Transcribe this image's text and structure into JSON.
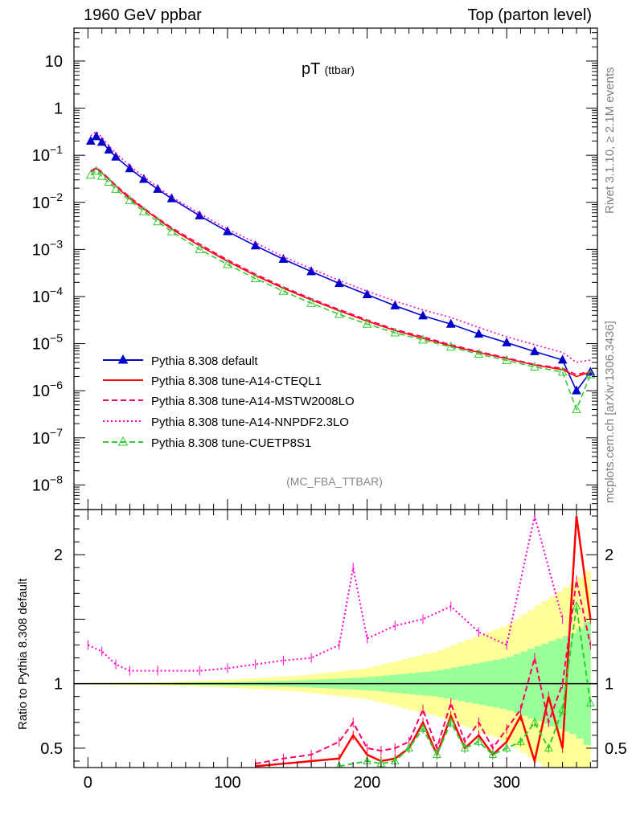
{
  "header": {
    "left": "1960 GeV ppbar",
    "right": "Top (parton level)"
  },
  "side_text": {
    "rivet": "Rivet 3.1.10, ≥ 2.1M events",
    "mcplots": "mcplots.cern.ch [arXiv:1306.3436]"
  },
  "chart_data": {
    "type": "line",
    "title_main": "pT",
    "title_sub": "(ttbar)",
    "analysis": "(MC_FBA_TTBAR)",
    "xlabel": "",
    "ratio_ylabel": "Ratio to Pythia 8.308 default",
    "xlim": [
      -10,
      365
    ],
    "x_ticks": [
      "0",
      "100",
      "200",
      "300"
    ],
    "main": {
      "yscale": "log",
      "ylim": [
        3e-09,
        50
      ],
      "y_tick_labels": [
        {
          "v": 10,
          "mant": "10",
          "exp": ""
        },
        {
          "v": 1,
          "mant": "1",
          "exp": ""
        },
        {
          "v": 0.1,
          "mant": "10",
          "exp": "−1"
        },
        {
          "v": 0.01,
          "mant": "10",
          "exp": "−2"
        },
        {
          "v": 0.001,
          "mant": "10",
          "exp": "−3"
        },
        {
          "v": 0.0001,
          "mant": "10",
          "exp": "−4"
        },
        {
          "v": 1e-05,
          "mant": "10",
          "exp": "−5"
        },
        {
          "v": 1e-06,
          "mant": "10",
          "exp": "−6"
        },
        {
          "v": 1e-07,
          "mant": "10",
          "exp": "−7"
        },
        {
          "v": 1e-08,
          "mant": "10",
          "exp": "−8"
        }
      ],
      "series": [
        {
          "name": "Pythia 8.308 default",
          "color": "#0000cc",
          "style": "solid",
          "marker": "triangle-filled",
          "x": [
            2,
            6,
            10,
            15,
            20,
            30,
            40,
            50,
            60,
            80,
            100,
            120,
            140,
            160,
            180,
            200,
            220,
            240,
            260,
            280,
            300,
            320,
            340,
            350,
            360
          ],
          "y": [
            0.2,
            0.25,
            0.19,
            0.13,
            0.092,
            0.052,
            0.031,
            0.019,
            0.012,
            0.0052,
            0.0024,
            0.0012,
            0.00062,
            0.00034,
            0.00019,
            0.00011,
            6.4e-05,
            3.9e-05,
            2.6e-05,
            1.6e-05,
            1.05e-05,
            6.8e-06,
            4.5e-06,
            1e-06,
            2.5e-06
          ]
        },
        {
          "name": "Pythia 8.308 tune-A14-CTEQL1",
          "color": "#ff0000",
          "style": "solid",
          "marker": "none",
          "x": [
            2,
            6,
            10,
            15,
            20,
            30,
            40,
            50,
            60,
            80,
            100,
            120,
            140,
            160,
            180,
            200,
            220,
            240,
            260,
            280,
            300,
            320,
            340,
            350,
            360
          ],
          "y": [
            0.044,
            0.052,
            0.042,
            0.031,
            0.022,
            0.012,
            0.0072,
            0.0044,
            0.0027,
            0.0012,
            0.00056,
            0.00028,
            0.00015,
            8.5e-05,
            5e-05,
            3e-05,
            1.9e-05,
            1.3e-05,
            9e-06,
            6.5e-06,
            4.8e-06,
            3.5e-06,
            2.8e-06,
            2e-06,
            2.5e-06
          ]
        },
        {
          "name": "Pythia 8.308 tune-A14-MSTW2008LO",
          "color": "#ff0066",
          "style": "dashed",
          "marker": "none",
          "x": [
            2,
            6,
            10,
            15,
            20,
            30,
            40,
            50,
            60,
            80,
            100,
            120,
            140,
            160,
            180,
            200,
            220,
            240,
            260,
            280,
            300,
            320,
            340,
            350,
            360
          ],
          "y": [
            0.046,
            0.055,
            0.044,
            0.032,
            0.023,
            0.013,
            0.0076,
            0.0046,
            0.0029,
            0.0013,
            0.0006,
            0.0003,
            0.00016,
            9e-05,
            5.3e-05,
            3.2e-05,
            2e-05,
            1.4e-05,
            9.5e-06,
            6.8e-06,
            5e-06,
            3.6e-06,
            3e-06,
            2.2e-06,
            2.6e-06
          ]
        },
        {
          "name": "Pythia 8.308 tune-A14-NNPDF2.3LO",
          "color": "#ff00cc",
          "style": "dotted",
          "marker": "none",
          "x": [
            2,
            6,
            10,
            15,
            20,
            30,
            40,
            50,
            60,
            80,
            100,
            120,
            140,
            160,
            180,
            200,
            220,
            240,
            260,
            280,
            300,
            320,
            340,
            350,
            360
          ],
          "y": [
            0.26,
            0.32,
            0.24,
            0.16,
            0.11,
            0.06,
            0.035,
            0.021,
            0.013,
            0.0058,
            0.0027,
            0.0014,
            0.0007,
            0.00039,
            0.00022,
            0.00013,
            8e-05,
            5.2e-05,
            3.6e-05,
            2.2e-05,
            1.4e-05,
            9.5e-06,
            6.5e-06,
            4e-06,
            4.5e-06
          ]
        },
        {
          "name": "Pythia 8.308 tune-CUETP8S1",
          "color": "#33cc33",
          "style": "dashed",
          "marker": "triangle-open",
          "x": [
            2,
            6,
            10,
            15,
            20,
            30,
            40,
            50,
            60,
            80,
            100,
            120,
            140,
            160,
            180,
            200,
            220,
            240,
            260,
            280,
            300,
            320,
            340,
            350,
            360
          ],
          "y": [
            0.038,
            0.046,
            0.036,
            0.027,
            0.019,
            0.011,
            0.0064,
            0.0039,
            0.0024,
            0.001,
            0.00048,
            0.00024,
            0.00013,
            7.2e-05,
            4.2e-05,
            2.6e-05,
            1.7e-05,
            1.2e-05,
            8.5e-06,
            6e-06,
            4.4e-06,
            3.2e-06,
            2.5e-06,
            4e-07,
            2.2e-06
          ]
        }
      ]
    },
    "ratio": {
      "ylim": [
        0.35,
        2.35
      ],
      "y_ticks": [
        "0.5",
        "1",
        "2"
      ],
      "series": [
        {
          "name": "Pythia 8.308 tune-A14-NNPDF2.3LO",
          "x": [
            0,
            10,
            20,
            30,
            50,
            80,
            100,
            120,
            140,
            160,
            180,
            190,
            200,
            220,
            240,
            260,
            280,
            300,
            320,
            340
          ],
          "y": [
            1.3,
            1.25,
            1.15,
            1.1,
            1.1,
            1.1,
            1.12,
            1.15,
            1.18,
            1.2,
            1.3,
            1.9,
            1.35,
            1.45,
            1.5,
            1.6,
            1.4,
            1.3,
            2.3,
            1.5
          ]
        },
        {
          "name": "Pythia 8.308 tune-A14-CTEQL1",
          "x": [
            120,
            140,
            160,
            180,
            190,
            200,
            210,
            220,
            230,
            240,
            250,
            260,
            270,
            280,
            290,
            300,
            310,
            320,
            330,
            340,
            350,
            360
          ],
          "y": [
            0.36,
            0.38,
            0.4,
            0.42,
            0.6,
            0.45,
            0.4,
            0.42,
            0.5,
            0.7,
            0.45,
            0.75,
            0.5,
            0.6,
            0.45,
            0.55,
            0.75,
            0.4,
            0.9,
            0.5,
            2.3,
            1.5
          ]
        },
        {
          "name": "Pythia 8.308 tune-A14-MSTW2008LO",
          "x": [
            120,
            140,
            160,
            180,
            190,
            200,
            210,
            220,
            230,
            240,
            250,
            260,
            270,
            280,
            290,
            300,
            310,
            320,
            330,
            340,
            350,
            360
          ],
          "y": [
            0.38,
            0.42,
            0.45,
            0.55,
            0.7,
            0.5,
            0.48,
            0.5,
            0.55,
            0.8,
            0.5,
            0.85,
            0.55,
            0.7,
            0.5,
            0.65,
            0.8,
            1.2,
            0.7,
            1.0,
            1.8,
            1.3
          ]
        },
        {
          "name": "Pythia 8.308 tune-CUETP8S1",
          "x": [
            180,
            200,
            210,
            220,
            230,
            240,
            250,
            260,
            270,
            280,
            290,
            300,
            310,
            320,
            330,
            340,
            350,
            360
          ],
          "y": [
            0.36,
            0.4,
            0.38,
            0.4,
            0.5,
            0.65,
            0.45,
            0.7,
            0.5,
            0.55,
            0.45,
            0.5,
            0.55,
            0.7,
            0.5,
            0.8,
            1.6,
            0.85
          ]
        }
      ],
      "band": {
        "x": [
          0,
          50,
          100,
          150,
          200,
          250,
          300,
          350,
          360
        ],
        "inner": [
          0.003,
          0.006,
          0.012,
          0.025,
          0.05,
          0.1,
          0.2,
          0.4,
          0.5
        ],
        "outer": [
          0.006,
          0.012,
          0.03,
          0.06,
          0.12,
          0.25,
          0.45,
          0.8,
          0.9
        ]
      }
    }
  }
}
